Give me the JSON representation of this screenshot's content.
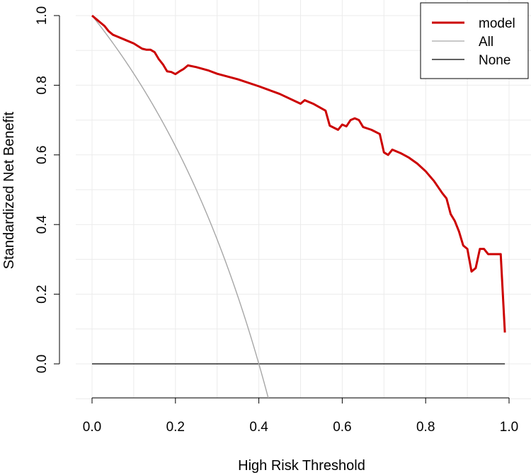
{
  "chart_data": {
    "type": "line",
    "title": "",
    "xlabel": "High Risk Threshold",
    "ylabel": "Standardized Net Benefit",
    "xlim": [
      0,
      1
    ],
    "ylim": [
      -0.1,
      1.0
    ],
    "x_ticks": [
      "0.0",
      "0.2",
      "0.4",
      "0.6",
      "0.8",
      "1.0"
    ],
    "y_ticks": [
      "0.0",
      "0.2",
      "0.4",
      "0.6",
      "0.8",
      "1.0"
    ],
    "grid": true,
    "legend_position": "top-right",
    "series": [
      {
        "name": "model",
        "color": "#cc0000",
        "x": [
          0.0,
          0.01,
          0.02,
          0.03,
          0.04,
          0.05,
          0.06,
          0.08,
          0.1,
          0.12,
          0.13,
          0.14,
          0.15,
          0.16,
          0.17,
          0.18,
          0.19,
          0.2,
          0.21,
          0.22,
          0.23,
          0.25,
          0.28,
          0.3,
          0.35,
          0.4,
          0.45,
          0.5,
          0.51,
          0.53,
          0.56,
          0.57,
          0.59,
          0.6,
          0.61,
          0.62,
          0.63,
          0.64,
          0.65,
          0.67,
          0.69,
          0.7,
          0.71,
          0.72,
          0.74,
          0.76,
          0.78,
          0.8,
          0.82,
          0.84,
          0.85,
          0.86,
          0.87,
          0.88,
          0.89,
          0.9,
          0.91,
          0.92,
          0.93,
          0.94,
          0.95,
          0.96,
          0.97,
          0.98,
          0.99
        ],
        "y": [
          1.0,
          0.99,
          0.98,
          0.97,
          0.955,
          0.945,
          0.94,
          0.93,
          0.92,
          0.905,
          0.902,
          0.902,
          0.895,
          0.875,
          0.86,
          0.84,
          0.838,
          0.832,
          0.84,
          0.847,
          0.857,
          0.852,
          0.842,
          0.833,
          0.817,
          0.797,
          0.775,
          0.747,
          0.757,
          0.747,
          0.727,
          0.684,
          0.672,
          0.687,
          0.682,
          0.7,
          0.705,
          0.7,
          0.68,
          0.672,
          0.66,
          0.607,
          0.6,
          0.615,
          0.605,
          0.592,
          0.575,
          0.553,
          0.525,
          0.49,
          0.475,
          0.43,
          0.41,
          0.38,
          0.34,
          0.33,
          0.265,
          0.275,
          0.33,
          0.33,
          0.315,
          0.315,
          0.315,
          0.315,
          0.09
        ]
      },
      {
        "name": "All",
        "color": "#a6a6a6",
        "formula": "1 - (p/(1-p)) * ((1-0.4)/0.4)",
        "prevalence": 0.4,
        "x_range": [
          0.0,
          0.43
        ]
      },
      {
        "name": "None",
        "color": "#000000",
        "x": [
          0.0,
          0.99
        ],
        "y": [
          0.0,
          0.0
        ]
      }
    ]
  }
}
